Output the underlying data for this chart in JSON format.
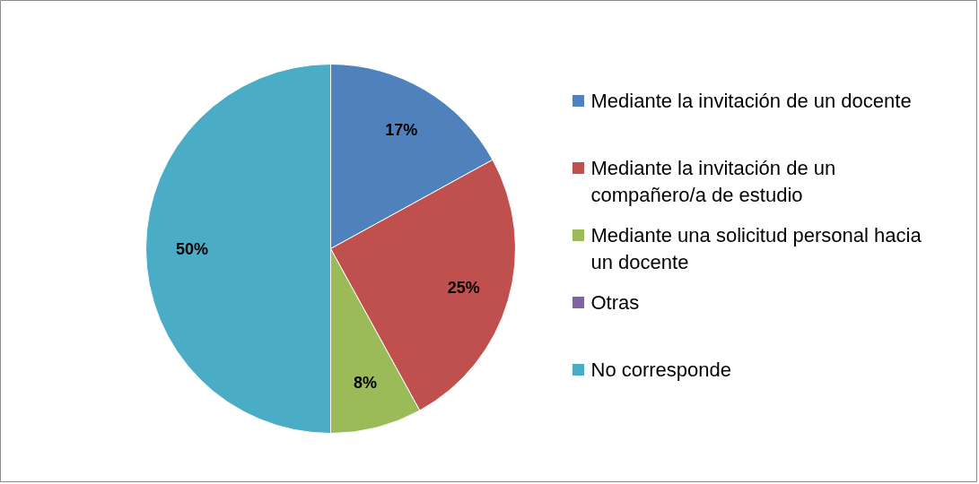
{
  "chart_data": {
    "type": "pie",
    "categories": [
      "Mediante la invitación de un docente",
      "Mediante la invitación de un compañero/a de estudio",
      "Mediante una solicitud personal hacia un docente",
      "Otras",
      "No corresponde"
    ],
    "values": [
      17,
      25,
      8,
      0,
      50
    ],
    "colors": [
      "#4f81bd",
      "#c0504d",
      "#9bbb59",
      "#8064a2",
      "#4bacc6"
    ],
    "value_labels": [
      "17%",
      "25%",
      "8%",
      null,
      "50%"
    ],
    "legend": "right"
  }
}
